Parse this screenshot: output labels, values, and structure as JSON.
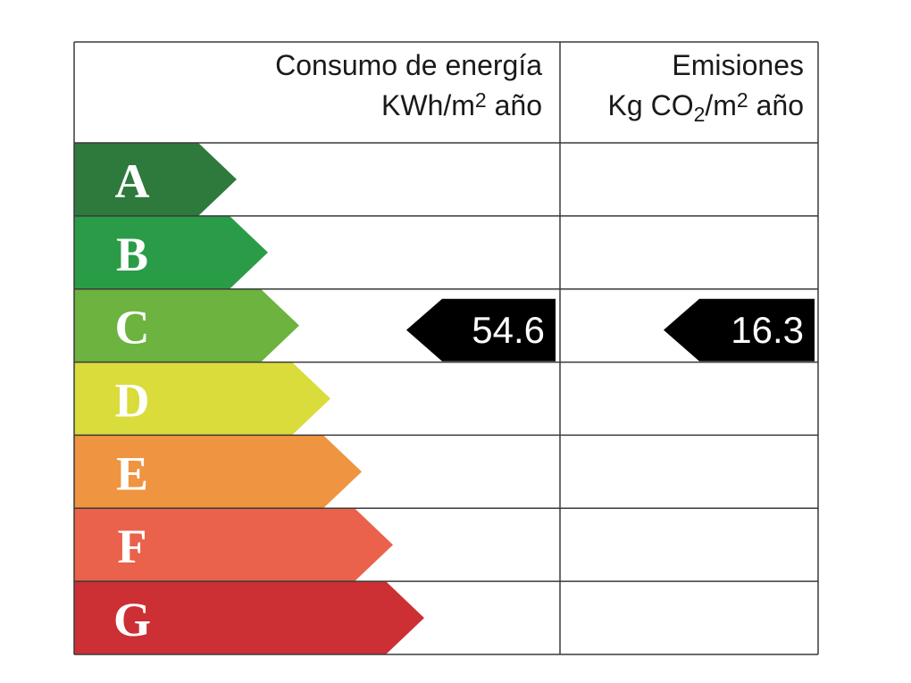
{
  "header": {
    "energy": {
      "title": "Consumo de energía",
      "unit": [
        "KWh/m",
        "2",
        " año"
      ]
    },
    "emissions": {
      "title": "Emisiones",
      "unit": [
        "Kg CO",
        "2",
        "/m",
        "2",
        " año"
      ]
    }
  },
  "rows": [
    {
      "letter": "A",
      "color": "#2e7a3c",
      "energy": null,
      "emissions": null
    },
    {
      "letter": "B",
      "color": "#2a9c48",
      "energy": null,
      "emissions": null
    },
    {
      "letter": "C",
      "color": "#6db33f",
      "energy": "54.6",
      "emissions": "16.3"
    },
    {
      "letter": "D",
      "color": "#d9dc3a",
      "energy": null,
      "emissions": null
    },
    {
      "letter": "E",
      "color": "#ef9440",
      "energy": null,
      "emissions": null
    },
    {
      "letter": "F",
      "color": "#ea624b",
      "energy": null,
      "emissions": null
    },
    {
      "letter": "G",
      "color": "#cc3034",
      "energy": null,
      "emissions": null
    }
  ]
}
